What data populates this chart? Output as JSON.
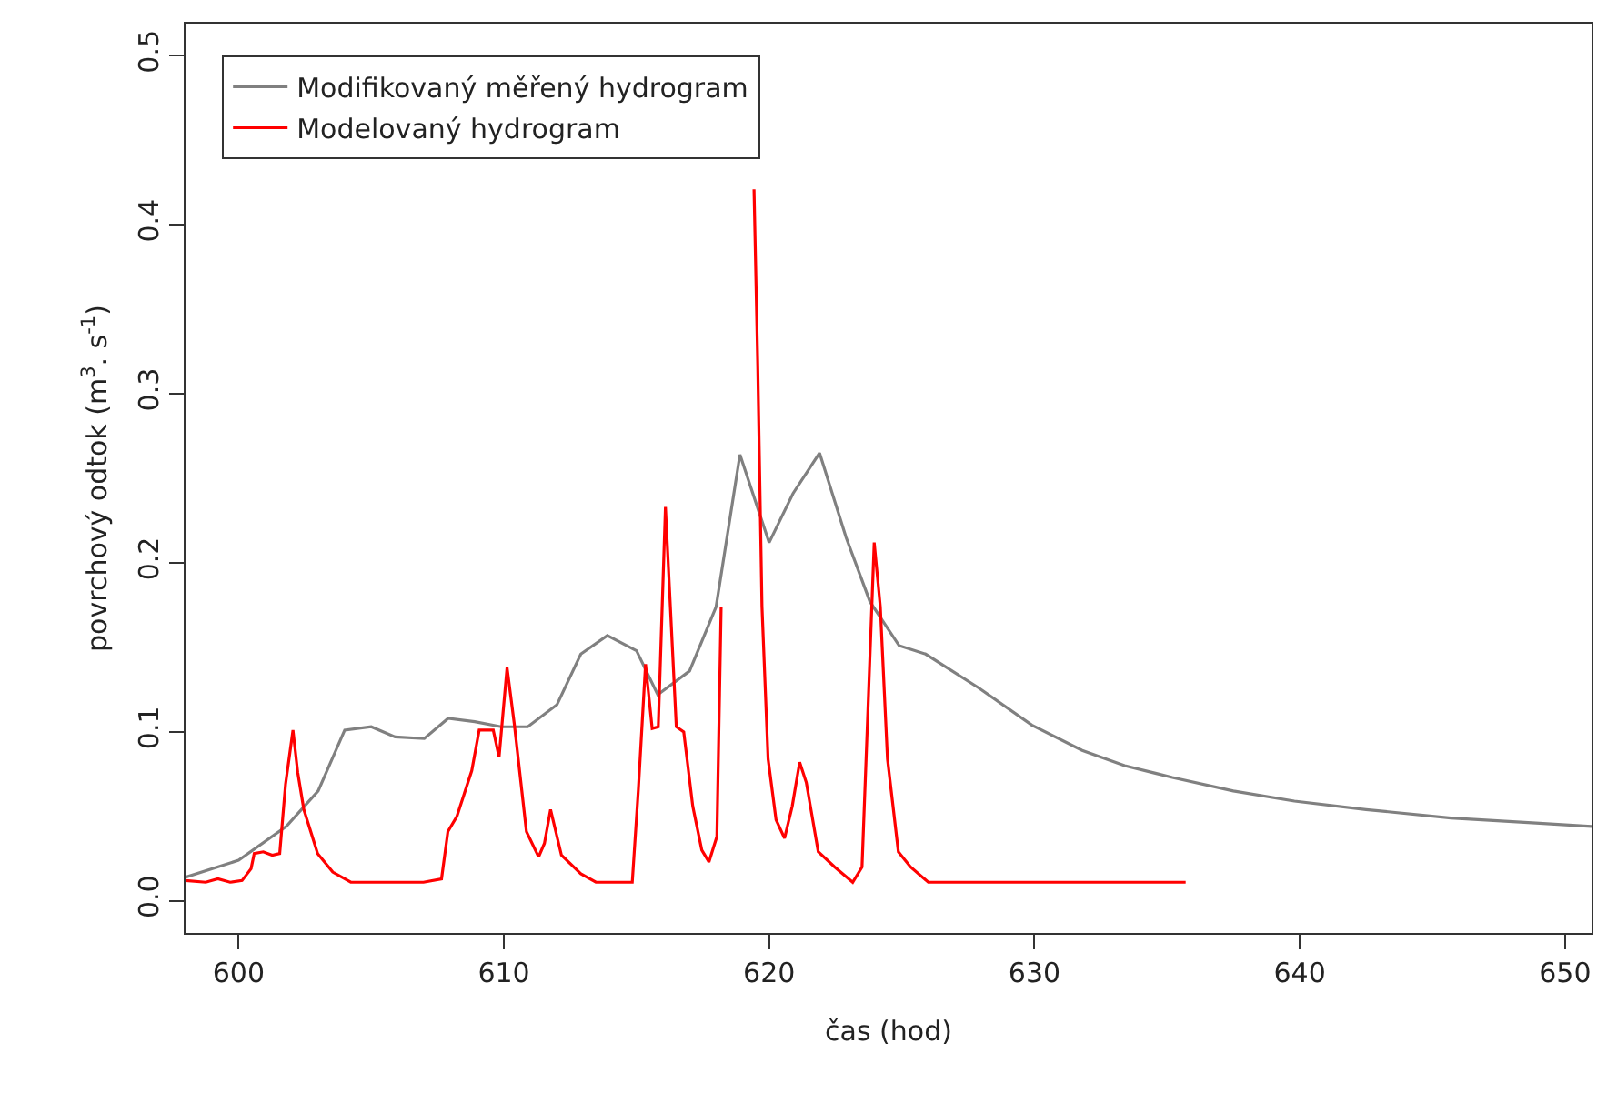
{
  "chart_data": {
    "type": "line",
    "xlabel": "čas (hod)",
    "ylabel": "povrchový odtok (m$^{3}$. s$^{-1}$)",
    "xlim": [
      598,
      651
    ],
    "ylim": [
      -0.019,
      0.519
    ],
    "xticks": [
      600,
      610,
      620,
      630,
      640,
      650
    ],
    "yticks": [
      {
        "value": 0,
        "label": "0.0"
      },
      {
        "value": 0.1,
        "label": "0.1"
      },
      {
        "value": 0.2,
        "label": "0.2"
      },
      {
        "value": 0.3,
        "label": "0.3"
      },
      {
        "value": 0.4,
        "label": "0.4"
      },
      {
        "value": 0.5,
        "label": "0.5"
      }
    ],
    "legend": "top left",
    "marker": "none",
    "line_style": "solid",
    "series": [
      {
        "name": "Modifikovaný měřený hydrogram",
        "color": "#808080",
        "x": [
          598.0,
          600.0,
          601.8,
          603.0,
          604.0,
          605.0,
          605.9,
          607.0,
          607.9,
          608.9,
          609.9,
          610.9,
          612.0,
          612.9,
          613.9,
          615.0,
          615.8,
          617.0,
          618.0,
          618.9,
          620.0,
          620.9,
          621.9,
          622.9,
          623.8,
          624.9,
          625.9,
          627.9,
          629.9,
          631.8,
          633.4,
          635.2,
          637.5,
          639.8,
          642.5,
          645.7,
          648.9,
          651.0
        ],
        "values": [
          0.014,
          0.024,
          0.044,
          0.065,
          0.101,
          0.103,
          0.097,
          0.096,
          0.108,
          0.106,
          0.103,
          0.103,
          0.116,
          0.146,
          0.157,
          0.148,
          0.122,
          0.136,
          0.174,
          0.264,
          0.212,
          0.241,
          0.265,
          0.215,
          0.177,
          0.151,
          0.146,
          0.126,
          0.104,
          0.089,
          0.08,
          0.073,
          0.065,
          0.059,
          0.054,
          0.049,
          0.046,
          0.044
        ]
      },
      {
        "name": "Modelovaný hydrogram",
        "color": "#ff0000",
        "x": [
          598.0,
          598.76,
          599.22,
          599.68,
          600.13,
          600.47,
          600.59,
          600.93,
          601.27,
          601.55,
          601.77,
          602.05,
          602.23,
          602.46,
          602.98,
          603.55,
          604.23,
          606.97,
          607.65,
          607.89,
          608.23,
          608.79,
          609.07,
          609.6,
          609.82,
          610.12,
          610.39,
          610.85,
          611.31,
          611.53,
          611.76,
          612.17,
          612.9,
          613.47,
          614.84,
          615.07,
          615.34,
          615.59,
          615.82,
          616.09,
          616.5,
          616.78,
          617.12,
          617.46,
          617.73,
          618.03,
          618.19,
          618.3,
          618.85,
          619.4,
          619.43,
          619.57,
          619.73,
          619.96,
          620.26,
          620.58,
          620.87,
          621.15,
          621.4,
          621.85,
          622.47,
          623.15,
          623.5,
          623.7,
          623.96,
          624.19,
          624.46,
          624.87,
          625.33,
          626.0,
          635.7
        ],
        "values": [
          0.012,
          0.011,
          0.013,
          0.011,
          0.012,
          0.019,
          0.028,
          0.029,
          0.027,
          0.028,
          0.069,
          0.101,
          0.076,
          0.054,
          0.028,
          0.017,
          0.011,
          0.011,
          0.013,
          0.041,
          0.05,
          0.077,
          0.101,
          0.101,
          0.085,
          0.138,
          0.105,
          0.041,
          0.026,
          0.034,
          0.054,
          0.027,
          0.016,
          0.011,
          0.011,
          0.066,
          0.14,
          0.102,
          0.103,
          0.233,
          0.103,
          0.1,
          0.056,
          0.03,
          0.023,
          0.038,
          0.174,
          null,
          null,
          null,
          0.421,
          0.317,
          0.174,
          0.084,
          0.048,
          0.037,
          0.056,
          0.082,
          0.07,
          0.029,
          0.02,
          0.011,
          0.02,
          0.103,
          0.212,
          0.174,
          0.084,
          0.029,
          0.02,
          0.011,
          0.011
        ]
      }
    ]
  }
}
